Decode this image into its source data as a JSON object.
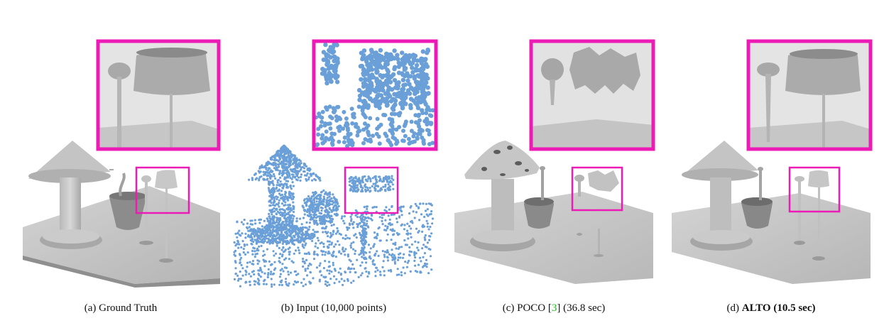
{
  "figure": {
    "accent_color": "#ec1bb5",
    "surface_color": "#bdbdbd",
    "point_color": "#6a9fd8",
    "panels": [
      {
        "key": "a",
        "caption": "(a) Ground Truth",
        "style": "ground-truth"
      },
      {
        "key": "b",
        "caption": "(b) Input (10,000 points)",
        "style": "point-cloud"
      },
      {
        "key": "c",
        "caption_prefix": "(c) POCO [",
        "caption_ref": "3",
        "caption_suffix": "] (36.8 sec)",
        "style": "poco"
      },
      {
        "key": "d",
        "caption_prefix": "(d) ",
        "caption_bold": "ALTO (10.5 sec)",
        "style": "alto"
      }
    ]
  }
}
